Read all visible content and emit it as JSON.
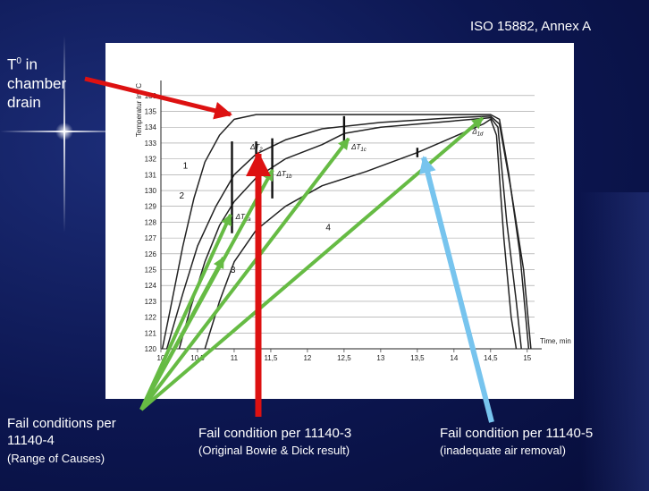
{
  "header": {
    "standard_ref": "ISO 15882, Annex A"
  },
  "annotation_left": {
    "line1": "T",
    "sup": "0",
    "line1_rest": " in",
    "line2": "chamber",
    "line3": "drain"
  },
  "captions": {
    "fail_11140_4": {
      "line1": "Fail conditions per 11140-4",
      "line2": "(Range of Causes)"
    },
    "fail_11140_3": {
      "line1": "Fail condition per 11140-3",
      "line2": "(Original Bowie & Dick result)"
    },
    "fail_11140_5": {
      "line1": "Fail condition per 11140-5",
      "line2": "(inadequate air removal)"
    }
  },
  "colors": {
    "green_arrow": "#66bb44",
    "red_arrow": "#dd1111",
    "blue_arrow": "#77c4ee",
    "curve": "#222222"
  },
  "chart_data": {
    "type": "line",
    "ylabel": "Temperatur in °C",
    "xlabel": "Time, min",
    "xlim": [
      10,
      15.1
    ],
    "ylim": [
      120,
      136.5
    ],
    "x_ticks": [
      "10",
      "10,5",
      "11",
      "11,5",
      "12",
      "12,5",
      "13",
      "13,5",
      "14",
      "14,5",
      "15"
    ],
    "x_tick_values": [
      10,
      10.5,
      11,
      11.5,
      12,
      12.5,
      13,
      13.5,
      14,
      14.5,
      15
    ],
    "y_ticks": [
      120,
      121,
      122,
      123,
      124,
      125,
      126,
      127,
      128,
      129,
      130,
      131,
      132,
      133,
      134,
      135,
      136
    ],
    "grid": "horizontal",
    "series": [
      {
        "name": "",
        "points": [
          [
            10.02,
            120
          ],
          [
            10.15,
            123
          ],
          [
            10.3,
            126.5
          ],
          [
            10.45,
            129.5
          ],
          [
            10.6,
            131.8
          ],
          [
            10.8,
            133.5
          ],
          [
            11,
            134.5
          ],
          [
            11.3,
            134.8
          ],
          [
            12,
            134.8
          ],
          [
            13,
            134.8
          ],
          [
            14,
            134.8
          ],
          [
            14.5,
            134.8
          ],
          [
            14.62,
            134.5
          ],
          [
            14.75,
            131
          ],
          [
            14.9,
            126
          ],
          [
            15.02,
            120
          ]
        ]
      },
      {
        "name": "",
        "points": [
          [
            10.08,
            120
          ],
          [
            10.3,
            123.5
          ],
          [
            10.5,
            126.5
          ],
          [
            10.75,
            129
          ],
          [
            11,
            131
          ],
          [
            11.3,
            132.3
          ],
          [
            11.7,
            133.2
          ],
          [
            12.2,
            133.9
          ],
          [
            13,
            134.3
          ],
          [
            14,
            134.6
          ],
          [
            14.5,
            134.7
          ],
          [
            14.62,
            134.2
          ],
          [
            14.78,
            130
          ],
          [
            14.95,
            125
          ],
          [
            15.05,
            120
          ]
        ]
      },
      {
        "name": "",
        "points": [
          [
            10.25,
            120
          ],
          [
            10.4,
            122.5
          ],
          [
            10.6,
            125.5
          ],
          [
            10.8,
            127.8
          ],
          [
            11,
            129.3
          ],
          [
            11.3,
            130.8
          ],
          [
            11.7,
            132
          ],
          [
            12.2,
            132.9
          ],
          [
            12.5,
            133.6
          ],
          [
            13,
            134
          ],
          [
            14,
            134.4
          ],
          [
            14.5,
            134.6
          ],
          [
            14.6,
            134
          ],
          [
            14.72,
            128
          ],
          [
            14.85,
            123
          ],
          [
            14.92,
            120
          ]
        ]
      },
      {
        "name": "",
        "points": [
          [
            10.6,
            120
          ],
          [
            10.8,
            123
          ],
          [
            11,
            125.5
          ],
          [
            11.3,
            127.5
          ],
          [
            11.7,
            129
          ],
          [
            12.2,
            130.3
          ],
          [
            12.8,
            131.2
          ],
          [
            13.5,
            132.4
          ],
          [
            14,
            133.4
          ],
          [
            14.4,
            134.2
          ],
          [
            14.5,
            134.5
          ],
          [
            14.58,
            133.5
          ],
          [
            14.68,
            127
          ],
          [
            14.78,
            122
          ],
          [
            14.85,
            120
          ]
        ]
      }
    ],
    "curve_labels": [
      {
        "text": "1",
        "x": 10.3,
        "y": 131.4
      },
      {
        "text": "2",
        "x": 10.25,
        "y": 129.5
      },
      {
        "text": "3",
        "x": 10.95,
        "y": 124.8
      },
      {
        "text": "4",
        "x": 12.25,
        "y": 127.5
      }
    ],
    "annotations": [
      {
        "main": "ΔT",
        "sub": "1a",
        "x": 11.02,
        "y": 128.2
      },
      {
        "main": "ΔT",
        "sub": "2",
        "x": 11.22,
        "y": 132.6
      },
      {
        "main": "ΔT",
        "sub": "1b",
        "x": 11.58,
        "y": 130.9
      },
      {
        "main": "ΔT",
        "sub": "1c",
        "x": 12.6,
        "y": 132.6
      },
      {
        "main": "T",
        "sub": "3",
        "x": 13.55,
        "y": 131.6
      },
      {
        "main": "Δ",
        "sub": "1d",
        "x": 14.25,
        "y": 133.6
      }
    ],
    "delta_bars": [
      {
        "x": 10.97,
        "y1": 127.3,
        "y2": 133.1
      },
      {
        "x": 11.3,
        "y1": 132.0,
        "y2": 133.1
      },
      {
        "x": 11.52,
        "y1": 129.5,
        "y2": 133.3
      },
      {
        "x": 12.5,
        "y1": 132.7,
        "y2": 134.7
      },
      {
        "x": 13.5,
        "y1": 132.1,
        "y2": 132.7
      }
    ]
  }
}
